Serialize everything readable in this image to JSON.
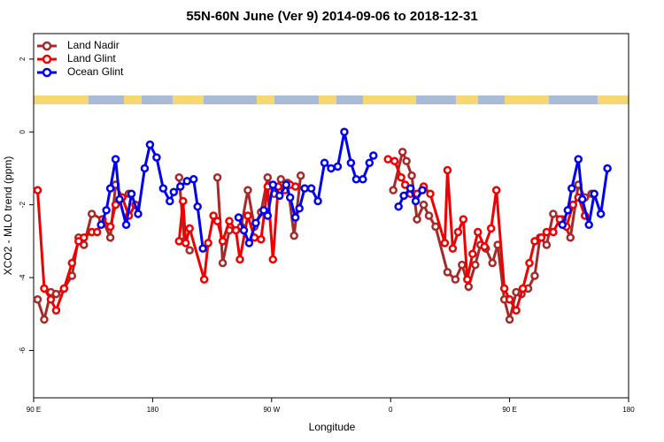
{
  "chart_data": {
    "type": "line",
    "title": "55N-60N June (Ver 9)   2014-09-06 to 2018-12-31",
    "x_label": "Longitude",
    "y_label": "XCO2 - MLO trend (ppm)",
    "xlim": [
      90,
      540
    ],
    "ylim": [
      -7.3,
      2.7
    ],
    "xticks": [
      {
        "value": 90,
        "label": "90 E"
      },
      {
        "value": 180,
        "label": "180"
      },
      {
        "value": 270,
        "label": "90 W"
      },
      {
        "value": 360,
        "label": "0"
      },
      {
        "value": 450,
        "label": "90 E"
      },
      {
        "value": 540,
        "label": "180"
      }
    ],
    "yticks": [
      -6,
      -4,
      -2,
      0,
      2
    ],
    "legend": "top-left",
    "series": [
      {
        "name": "Land Nadir",
        "color": "#a52a2a",
        "x": [
          93,
          98,
          103,
          107,
          113,
          119,
          124,
          128,
          134,
          142,
          148,
          152,
          157,
          162,
          180,
          200,
          204,
          208,
          220,
          229,
          233,
          238,
          247,
          252,
          257,
          262,
          267,
          272,
          277,
          282,
          287,
          292,
          330,
          362,
          369,
          372,
          376,
          380,
          385,
          389,
          394,
          403,
          409,
          414,
          419,
          424,
          428,
          432,
          437,
          441,
          446,
          450,
          455,
          459,
          464,
          469,
          473,
          478,
          483,
          490,
          496,
          502,
          507,
          512
        ],
        "values": [
          -4.6,
          -5.15,
          -4.4,
          -4.45,
          -4.3,
          -3.95,
          -2.9,
          -3.1,
          -2.25,
          -2.4,
          -2.9,
          -1.45,
          -1.8,
          -1.7,
          null,
          -1.25,
          -3.0,
          -3.25,
          null,
          -1.25,
          -3.6,
          -2.7,
          -2.6,
          -1.6,
          -2.6,
          -2.2,
          -1.25,
          -1.7,
          -1.3,
          -1.4,
          -2.85,
          -1.2,
          null,
          -1.6,
          -0.55,
          -0.8,
          -1.2,
          -2.4,
          -2.0,
          -2.3,
          -2.6,
          -3.85,
          -4.05,
          -3.65,
          -4.25,
          -3.65,
          -3.1,
          -3.2,
          -3.6,
          -3.1,
          -4.6,
          -5.15,
          -4.4,
          -4.45,
          -4.3,
          -3.95,
          -2.9,
          -3.1,
          -2.25,
          -2.4,
          -2.9,
          -1.45,
          -1.8,
          -1.7
        ]
      },
      {
        "name": "Land Glint",
        "color": "#ee0000",
        "x": [
          93,
          98,
          103,
          107,
          113,
          119,
          124,
          128,
          134,
          138,
          142,
          148,
          152,
          157,
          162,
          167,
          185,
          200,
          203,
          205,
          208,
          219,
          222,
          226,
          229,
          233,
          238,
          243,
          246,
          252,
          257,
          262,
          267,
          271,
          275,
          280,
          284,
          288,
          320,
          358,
          363,
          368,
          371,
          375,
          380,
          385,
          390,
          401,
          403,
          407,
          411,
          415,
          418,
          422,
          426,
          431,
          436,
          440,
          446,
          450,
          455,
          460,
          465,
          469,
          474,
          478,
          483,
          488,
          493,
          498,
          502,
          507
        ],
        "values": [
          -1.6,
          -4.3,
          -4.6,
          -4.9,
          -4.3,
          -3.6,
          -3.0,
          -2.9,
          -2.75,
          -2.75,
          -2.4,
          -2.6,
          -2.0,
          -1.8,
          -2.3,
          -2.0,
          null,
          -3.0,
          -1.9,
          -3.05,
          -2.65,
          -4.05,
          -3.05,
          -2.3,
          -2.45,
          -3.0,
          -2.45,
          -2.7,
          -3.5,
          -2.3,
          -2.9,
          -2.95,
          -1.5,
          -3.5,
          -1.5,
          -1.6,
          -1.45,
          -1.5,
          null,
          -0.75,
          -0.8,
          -1.25,
          -1.45,
          -1.7,
          -1.7,
          -1.5,
          -1.7,
          -3.05,
          -1.05,
          -3.2,
          -2.75,
          -2.4,
          -4.05,
          -3.35,
          -2.75,
          -3.15,
          -2.65,
          -1.6,
          -4.3,
          -4.6,
          -4.9,
          -4.3,
          -3.6,
          -3.0,
          -2.9,
          -2.75,
          -2.75,
          -2.4,
          -2.6,
          -2.0,
          -1.8,
          -2.3
        ]
      },
      {
        "name": "Ocean Glint",
        "color": "#0000ee",
        "x": [
          141,
          145,
          148,
          152,
          155,
          160,
          164,
          169,
          174,
          178,
          183,
          188,
          193,
          196,
          201,
          206,
          211,
          214,
          218,
          230,
          245,
          249,
          253,
          258,
          264,
          267,
          271,
          276,
          281,
          284,
          288,
          291,
          295,
          300,
          305,
          310,
          315,
          320,
          325,
          330,
          334,
          339,
          344,
          347,
          355,
          366,
          370,
          375,
          379,
          384,
          440,
          490,
          494,
          497,
          502,
          505,
          510,
          514,
          519,
          524
        ],
        "values": [
          -2.55,
          -2.15,
          -1.55,
          -0.75,
          -1.85,
          -2.55,
          -1.7,
          -2.25,
          -1.0,
          -0.35,
          -0.7,
          -1.55,
          -1.9,
          -1.65,
          -1.5,
          -1.35,
          -1.3,
          -2.05,
          -3.2,
          null,
          -2.35,
          -2.7,
          -3.05,
          -2.5,
          -2.15,
          -2.3,
          -1.45,
          -1.75,
          -1.45,
          -1.8,
          -2.35,
          -2.1,
          -1.55,
          -1.55,
          -1.9,
          -0.85,
          -1.0,
          -0.95,
          0,
          -0.85,
          -1.3,
          -1.3,
          -0.85,
          -0.65,
          null,
          -2.05,
          -1.75,
          -1.55,
          -1.9,
          -1.6,
          null,
          -2.55,
          -2.15,
          -1.55,
          -0.75,
          -1.85,
          -2.55,
          -1.7,
          -2.25,
          -1.0
        ]
      }
    ]
  }
}
